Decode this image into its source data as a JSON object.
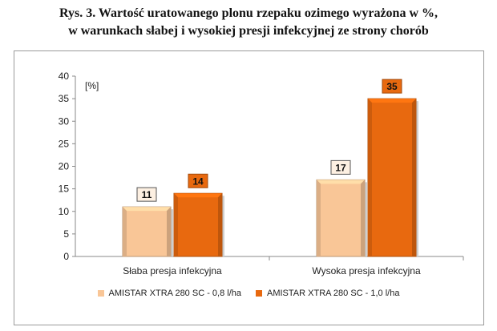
{
  "title": {
    "line1": "Rys. 3. Wartość uratowanego plonu rzepaku ozimego wyrażona w %,",
    "line2": "w warunkach słabej i wysokiej presji infekcyjnej ze strony chorób"
  },
  "colors": {
    "series1": "#f9c697",
    "series2": "#e8690f",
    "label_bg": "#fdf0e2",
    "axis": "#888888"
  },
  "chart_data": {
    "type": "bar",
    "title": "Rys. 3. Wartość uratowanego plonu rzepaku ozimego wyrażona w %, w warunkach słabej i wysokiej presji infekcyjnej ze strony chorób",
    "ylabel": "[%]",
    "xlabel": "",
    "ylim": [
      0,
      40
    ],
    "yticks": [
      0,
      5,
      10,
      15,
      20,
      25,
      30,
      35,
      40
    ],
    "grid": false,
    "legend": "bottom",
    "categories": [
      "Słaba presja infekcyjna",
      "Wysoka presja infekcyjna"
    ],
    "series": [
      {
        "name": "AMISTAR XTRA 280 SC - 0,8 l/ha",
        "values": [
          11,
          17
        ]
      },
      {
        "name": "AMISTAR XTRA 280 SC - 1,0 l/ha",
        "values": [
          14,
          35
        ]
      }
    ]
  }
}
